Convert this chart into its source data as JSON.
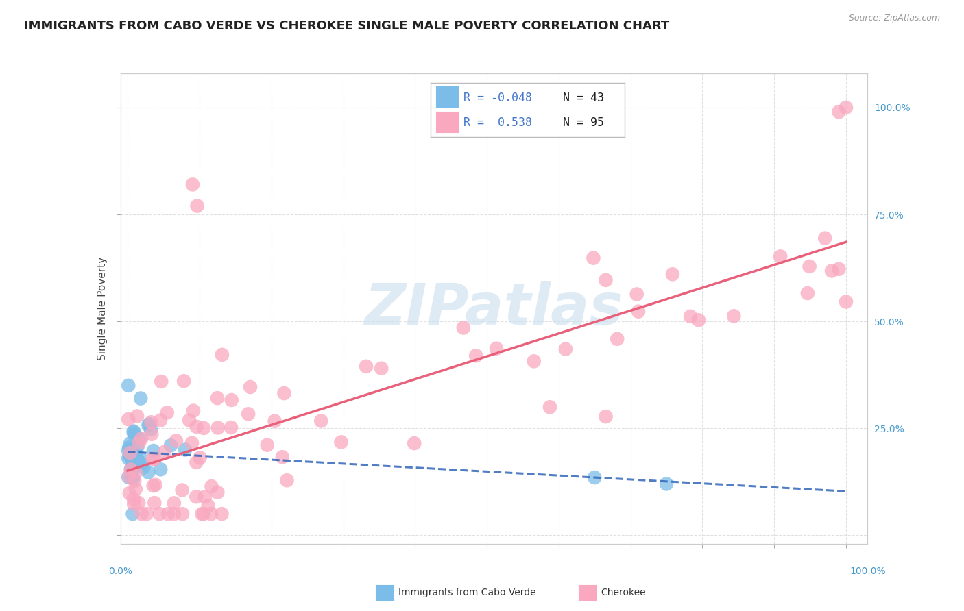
{
  "title": "IMMIGRANTS FROM CABO VERDE VS CHEROKEE SINGLE MALE POVERTY CORRELATION CHART",
  "source": "Source: ZipAtlas.com",
  "ylabel": "Single Male Poverty",
  "cabo_verde_color": "#7BBDE8",
  "cherokee_color": "#F9A8C0",
  "cabo_verde_line_color": "#3366BB",
  "cherokee_line_color": "#E8607A",
  "watermark_color": "#C8DFEF",
  "r_color": "#4477CC",
  "n_color": "#222222",
  "right_tick_color": "#4499CC",
  "cabo_R": -0.048,
  "cabo_N": 43,
  "cherokee_R": 0.538,
  "cherokee_N": 95
}
